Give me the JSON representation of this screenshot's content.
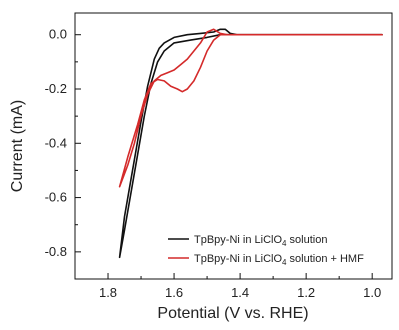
{
  "chart_data": {
    "type": "line",
    "xlabel": "Potential (V vs. RHE)",
    "ylabel": "Current (mA)",
    "xlim": [
      1.9,
      0.94
    ],
    "ylim": [
      -0.9,
      0.08
    ],
    "x_reversed": true,
    "xticks": [
      "1.8",
      "1.6",
      "1.4",
      "1.2",
      "1.0"
    ],
    "xtick_values": [
      1.8,
      1.6,
      1.4,
      1.2,
      1.0
    ],
    "yticks": [
      "0.0",
      "-0.2",
      "-0.4",
      "-0.6",
      "-0.8"
    ],
    "ytick_values": [
      0.0,
      -0.2,
      -0.4,
      -0.6,
      -0.8
    ],
    "grid": false,
    "legend_position": "bottom-right",
    "series": [
      {
        "name": "TpBpy-Ni in LiClO4 solution",
        "legend_text": {
          "base": "TpBpy-Ni in LiClO",
          "sub": "4",
          "rest": " solution"
        },
        "color": "#111111",
        "x": [
          1.765,
          1.75,
          1.72,
          1.7,
          1.68,
          1.66,
          1.645,
          1.63,
          1.6,
          1.56,
          1.52,
          1.48,
          1.46,
          1.445,
          1.43,
          1.41,
          1.3,
          1.2,
          1.1,
          0.97,
          1.1,
          1.2,
          1.3,
          1.4,
          1.43,
          1.46,
          1.5,
          1.55,
          1.6,
          1.63,
          1.65,
          1.67,
          1.69,
          1.71,
          1.73,
          1.75,
          1.765
        ],
        "y": [
          -0.82,
          -0.67,
          -0.46,
          -0.32,
          -0.19,
          -0.09,
          -0.05,
          -0.03,
          -0.01,
          0.0,
          0.005,
          0.01,
          0.02,
          0.02,
          0.005,
          0.0,
          0.0,
          0.0,
          0.0,
          0.0,
          0.0,
          0.0,
          0.0,
          0.0,
          0.0,
          0.0,
          -0.01,
          -0.02,
          -0.03,
          -0.06,
          -0.1,
          -0.18,
          -0.3,
          -0.44,
          -0.58,
          -0.72,
          -0.82
        ]
      },
      {
        "name": "TpBpy-Ni in LiClO4 solution + HMF",
        "legend_text": {
          "base": "TpBpy-Ni in LiClO",
          "sub": "4",
          "rest": " solution + HMF"
        },
        "color": "#d42a2a",
        "x": [
          1.765,
          1.74,
          1.71,
          1.69,
          1.67,
          1.65,
          1.63,
          1.61,
          1.59,
          1.575,
          1.56,
          1.54,
          1.52,
          1.5,
          1.48,
          1.46,
          1.44,
          1.42,
          1.3,
          1.2,
          1.1,
          0.97,
          1.1,
          1.2,
          1.3,
          1.4,
          1.44,
          1.46,
          1.48,
          1.5,
          1.52,
          1.54,
          1.56,
          1.58,
          1.6,
          1.62,
          1.64,
          1.66,
          1.68,
          1.7,
          1.72,
          1.74,
          1.765
        ],
        "y": [
          -0.56,
          -0.45,
          -0.33,
          -0.24,
          -0.18,
          -0.165,
          -0.17,
          -0.19,
          -0.2,
          -0.21,
          -0.2,
          -0.17,
          -0.12,
          -0.06,
          -0.02,
          0.0,
          0.0,
          0.0,
          0.0,
          0.0,
          0.0,
          0.0,
          0.0,
          0.0,
          0.0,
          0.0,
          0.0,
          0.005,
          0.02,
          0.01,
          -0.03,
          -0.06,
          -0.09,
          -0.11,
          -0.13,
          -0.14,
          -0.15,
          -0.17,
          -0.22,
          -0.3,
          -0.4,
          -0.48,
          -0.56
        ]
      }
    ]
  }
}
